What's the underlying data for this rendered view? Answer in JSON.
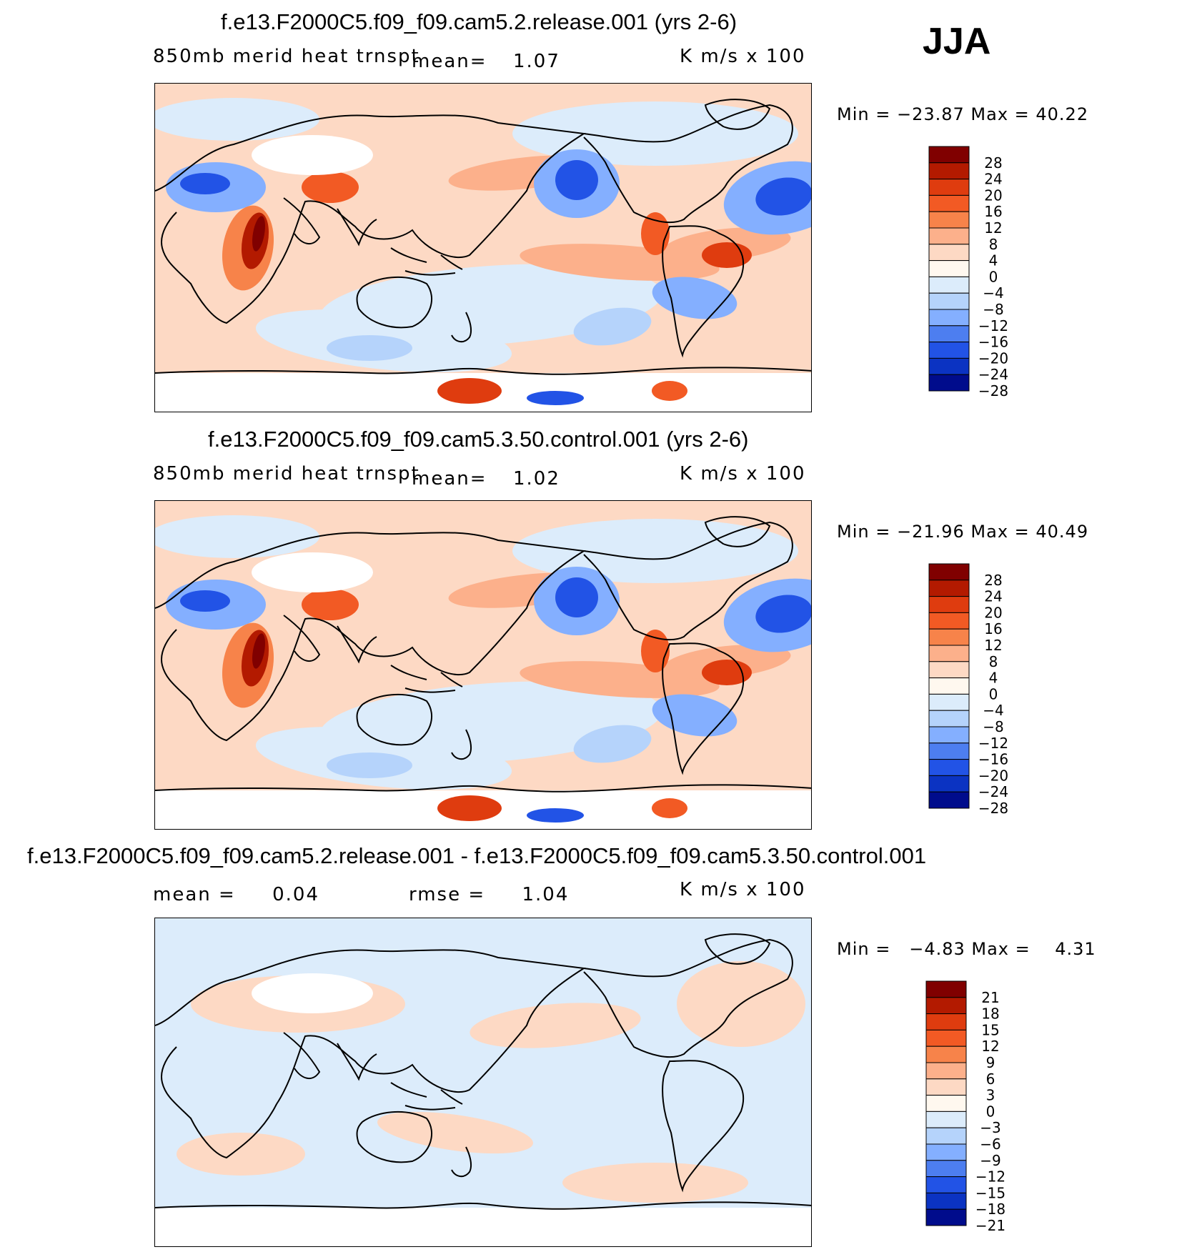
{
  "season": "JJA",
  "panels": [
    {
      "title": "f.e13.F2000C5.f09_f09.cam5.2.release.001 (yrs 2-6)",
      "variable": "850mb merid heat trnspt",
      "mean_label": "mean=",
      "mean_value": "1.07",
      "units": "K m/s x 100",
      "minmax": "Min = −23.87 Max =   40.22",
      "colorbar_ticks": [
        "28",
        "24",
        "20",
        "16",
        "12",
        "8",
        "4",
        "0",
        "−4",
        "−8",
        "−12",
        "−16",
        "−20",
        "−24",
        "−28"
      ]
    },
    {
      "title": "f.e13.F2000C5.f09_f09.cam5.3.50.control.001 (yrs 2-6)",
      "variable": "850mb merid heat trnspt",
      "mean_label": "mean=",
      "mean_value": "1.02",
      "units": "K m/s x 100",
      "minmax": "Min = −21.96 Max =   40.49",
      "colorbar_ticks": [
        "28",
        "24",
        "20",
        "16",
        "12",
        "8",
        "4",
        "0",
        "−4",
        "−8",
        "−12",
        "−16",
        "−20",
        "−24",
        "−28"
      ]
    },
    {
      "title": "f.e13.F2000C5.f09_f09.cam5.2.release.001 - f.e13.F2000C5.f09_f09.cam5.3.50.control.001",
      "mean_text": "mean =     0.04",
      "rmse_text": "rmse =     1.04",
      "units": "K m/s x 100",
      "minmax": "Min =   −4.83 Max =    4.31",
      "colorbar_ticks": [
        "21",
        "18",
        "15",
        "12",
        "9",
        "6",
        "3",
        "0",
        "−3",
        "−6",
        "−9",
        "−12",
        "−15",
        "−18",
        "−21"
      ]
    }
  ],
  "colorbar_colors": [
    "#800000",
    "#b31a00",
    "#df3c0f",
    "#f25a24",
    "#f7834a",
    "#fcb08b",
    "#fdd9c4",
    "#fff8ef",
    "#dcecfb",
    "#b5d3fb",
    "#84afff",
    "#4d7ef0",
    "#2253e6",
    "#0b33c2",
    "#000c8c"
  ],
  "fill_colors": {
    "land_missing": "#ffffff",
    "coast": "#000000"
  }
}
